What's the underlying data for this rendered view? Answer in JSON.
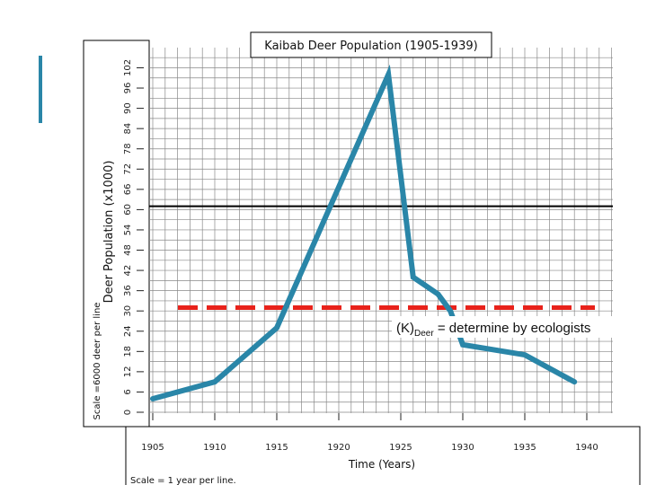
{
  "chart_data": {
    "type": "line",
    "title": "Kaibab Deer Population (1905-1939)",
    "xlabel": "Time (Years)",
    "ylabel": "Deer Population (x1000)",
    "y_scale_note": "Scale =6000 deer per line",
    "x_scale_note": "Scale = 1 year per line.",
    "xlim": [
      1905,
      1943
    ],
    "ylim": [
      0,
      105
    ],
    "x_ticks": [
      1905,
      1910,
      1915,
      1920,
      1925,
      1930,
      1935,
      1940
    ],
    "y_ticks": [
      0,
      6,
      12,
      18,
      24,
      30,
      36,
      42,
      48,
      54,
      60,
      66,
      72,
      78,
      84,
      90,
      96,
      102
    ],
    "grid": true,
    "series": [
      {
        "color": "#2a86a8",
        "x": [
          1905,
          1910,
          1915,
          1924,
          1926,
          1928,
          1929,
          1930,
          1935,
          1939
        ],
        "y": [
          4,
          9,
          25,
          100,
          40,
          35,
          30,
          20,
          17,
          9
        ]
      }
    ],
    "reference_lines": [
      {
        "y": 61,
        "color": "#000000",
        "style": "solid"
      },
      {
        "y": 31,
        "color": "#e8221b",
        "style": "dashed",
        "label_main": "(K)",
        "label_sub": "Deer",
        "label_rest": " = determine by ecologists"
      }
    ]
  },
  "colors": {
    "series_line": "#2a86a8",
    "deco_bar": "#2a86a8",
    "grid_line": "#888888",
    "carrying_capacity": "#e8221b"
  }
}
